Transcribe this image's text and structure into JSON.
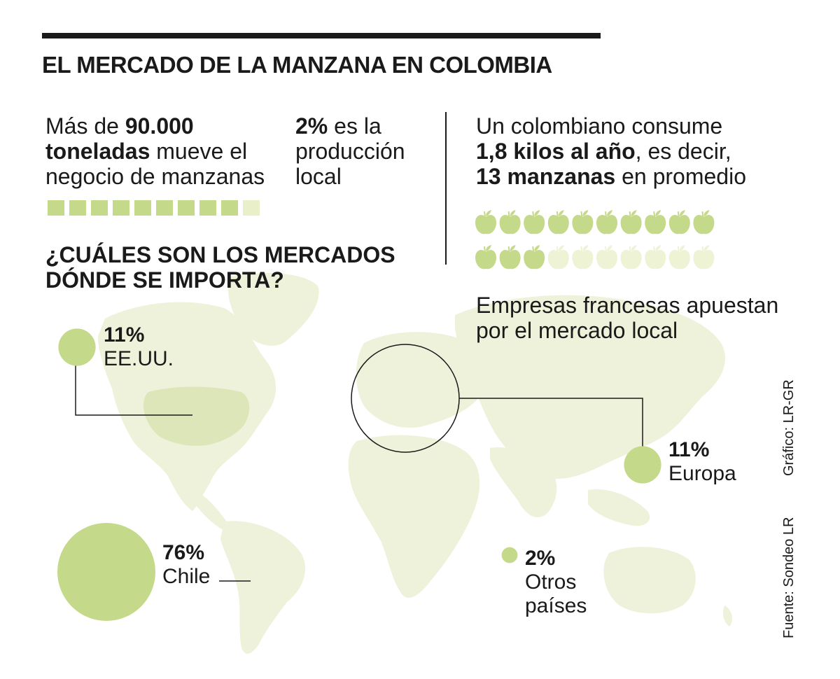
{
  "title": "EL MERCADO DE LA MANZANA EN COLOMBIA",
  "stat1": {
    "line1_pre": "Más de ",
    "line1_bold": "90.000",
    "line2_bold": "toneladas",
    "line2_post": " mueve el",
    "line3": "negocio de manzanas"
  },
  "stat2": {
    "line1_bold": "2%",
    "line1_post": " es la",
    "line2": "producción",
    "line3": "local"
  },
  "stat3": {
    "line1": "Un colombiano consume",
    "line2_bold": "1,8 kilos al año",
    "line2_post": ", es decir,",
    "line3_bold": "13 manzanas",
    "line3_post": " en promedio"
  },
  "subtitle": {
    "line1": "¿CUÁLES SON LOS MERCADOS",
    "line2": "DÓNDE SE IMPORTA?"
  },
  "note": {
    "line1": "Empresas francesas apuestan",
    "line2": "por el mercado local"
  },
  "credits": {
    "graphic": "Gráfico: LR-GR",
    "source": "Fuente: Sondeo LR"
  },
  "colors": {
    "bubble": "#c5d98a",
    "square_filled": "#c5d98a",
    "square_empty": "#e8efc9",
    "apple_filled": "#c5d98a",
    "apple_empty": "#eef3d6",
    "map_land": "#eef2da",
    "usa_highlight": "#dde6b8",
    "text": "#1a1a1a"
  },
  "chart_data": [
    {
      "type": "pictogram",
      "description_units": "production share squares",
      "total": 10,
      "filled": 9
    },
    {
      "type": "pictogram",
      "description_units": "apples",
      "total": 20,
      "filled": 13
    },
    {
      "type": "bubble",
      "categories": [
        "EE.UU.",
        "Europa",
        "Chile",
        "Otros países"
      ],
      "values": [
        11,
        11,
        76,
        2
      ],
      "labels": [
        "11%",
        "11%",
        "76%",
        "2%"
      ]
    }
  ],
  "markets": [
    {
      "name": "EE.UU.",
      "pct_label": "11%",
      "value": 11
    },
    {
      "name": "Europa",
      "pct_label": "11%",
      "value": 11
    },
    {
      "name": "Chile",
      "pct_label": "76%",
      "value": 76
    },
    {
      "name_line1": "Otros",
      "name_line2": "países",
      "pct_label": "2%",
      "value": 2
    }
  ]
}
